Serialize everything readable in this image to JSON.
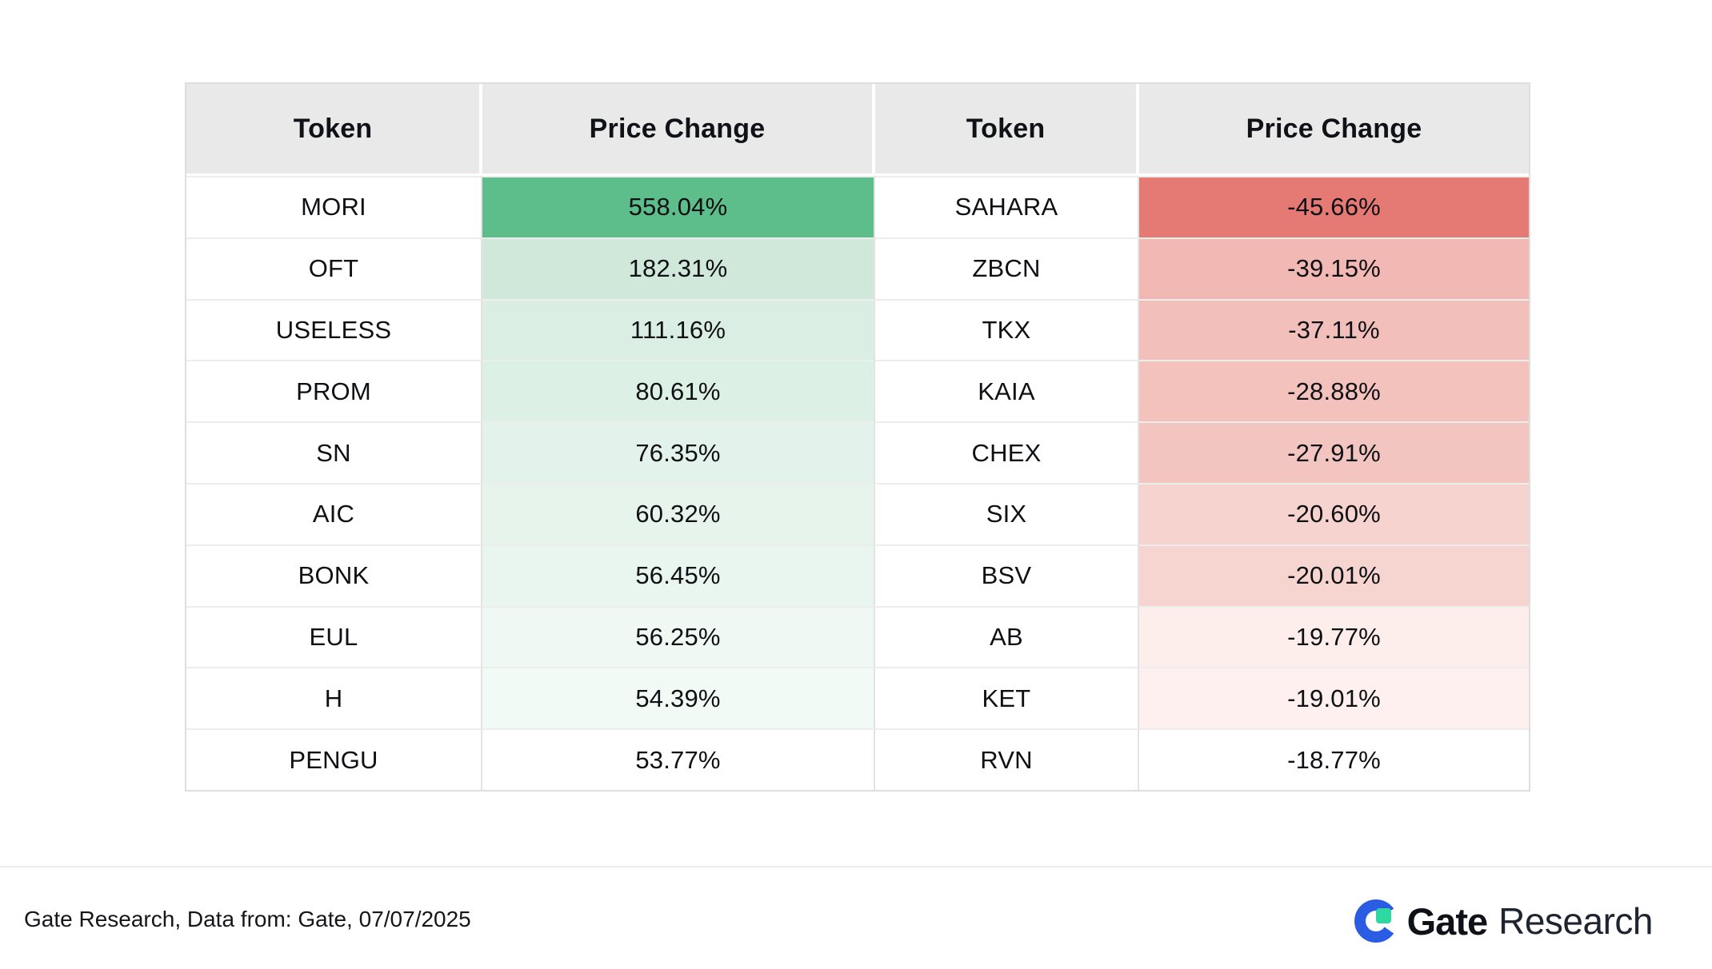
{
  "table": {
    "headers": [
      {
        "label": "Token"
      },
      {
        "label": "Price Change"
      },
      {
        "label": "Token"
      },
      {
        "label": "Price Change"
      }
    ],
    "header_bg": "#e9e9e9",
    "rows": [
      {
        "gainer": {
          "token": "MORI",
          "change": "558.04%",
          "bg": "#5dbd8b"
        },
        "loser": {
          "token": "SAHARA",
          "change": "-45.66%",
          "bg": "#e57a74"
        }
      },
      {
        "gainer": {
          "token": "OFT",
          "change": "182.31%",
          "bg": "#cfe8da"
        },
        "loser": {
          "token": "ZBCN",
          "change": "-39.15%",
          "bg": "#f2b8b3"
        }
      },
      {
        "gainer": {
          "token": "USELESS",
          "change": "111.16%",
          "bg": "#dbeee4"
        },
        "loser": {
          "token": "TKX",
          "change": "-37.11%",
          "bg": "#f2bfba"
        }
      },
      {
        "gainer": {
          "token": "PROM",
          "change": "80.61%",
          "bg": "#ddf0e6"
        },
        "loser": {
          "token": "KAIA",
          "change": "-28.88%",
          "bg": "#f3c2bd"
        }
      },
      {
        "gainer": {
          "token": "SN",
          "change": "76.35%",
          "bg": "#e3f2ea"
        },
        "loser": {
          "token": "CHEX",
          "change": "-27.91%",
          "bg": "#f3c5c0"
        }
      },
      {
        "gainer": {
          "token": "AIC",
          "change": "60.32%",
          "bg": "#e6f4ec"
        },
        "loser": {
          "token": "SIX",
          "change": "-20.60%",
          "bg": "#f6d3cf"
        }
      },
      {
        "gainer": {
          "token": "BONK",
          "change": "56.45%",
          "bg": "#e9f6ef"
        },
        "loser": {
          "token": "BSV",
          "change": "-20.01%",
          "bg": "#f6d5d1"
        }
      },
      {
        "gainer": {
          "token": "EUL",
          "change": "56.25%",
          "bg": "#eff8f3"
        },
        "loser": {
          "token": "AB",
          "change": "-19.77%",
          "bg": "#fdeeec"
        }
      },
      {
        "gainer": {
          "token": "H",
          "change": "54.39%",
          "bg": "#f2faf6"
        },
        "loser": {
          "token": "KET",
          "change": "-19.01%",
          "bg": "#fdf0ee"
        }
      },
      {
        "gainer": {
          "token": "PENGU",
          "change": "53.77%",
          "bg": "#ffffff"
        },
        "loser": {
          "token": "RVN",
          "change": "-18.77%",
          "bg": "#ffffff"
        }
      }
    ]
  },
  "footer": {
    "source": "Gate Research, Data from: Gate, 07/07/2025"
  },
  "logo": {
    "brand": "Gate",
    "suffix": "Research",
    "blue": "#2b5ce4",
    "green": "#2ed8a3"
  },
  "chart_data": {
    "type": "table",
    "columns": [
      "Token",
      "Price Change",
      "Token",
      "Price Change"
    ],
    "gainers": {
      "tokens": [
        "MORI",
        "OFT",
        "USELESS",
        "PROM",
        "SN",
        "AIC",
        "BONK",
        "EUL",
        "H",
        "PENGU"
      ],
      "price_change_pct": [
        558.04,
        182.31,
        111.16,
        80.61,
        76.35,
        60.32,
        56.45,
        56.25,
        54.39,
        53.77
      ]
    },
    "losers": {
      "tokens": [
        "SAHARA",
        "ZBCN",
        "TKX",
        "KAIA",
        "CHEX",
        "SIX",
        "BSV",
        "AB",
        "KET",
        "RVN"
      ],
      "price_change_pct": [
        -45.66,
        -39.15,
        -37.11,
        -28.88,
        -27.91,
        -20.6,
        -20.01,
        -19.77,
        -19.01,
        -18.77
      ]
    },
    "color_scale": {
      "positive": "#5dbd8b",
      "negative": "#e57a74",
      "neutral": "#ffffff"
    },
    "source": "Gate Research, Data from: Gate, 07/07/2025"
  }
}
